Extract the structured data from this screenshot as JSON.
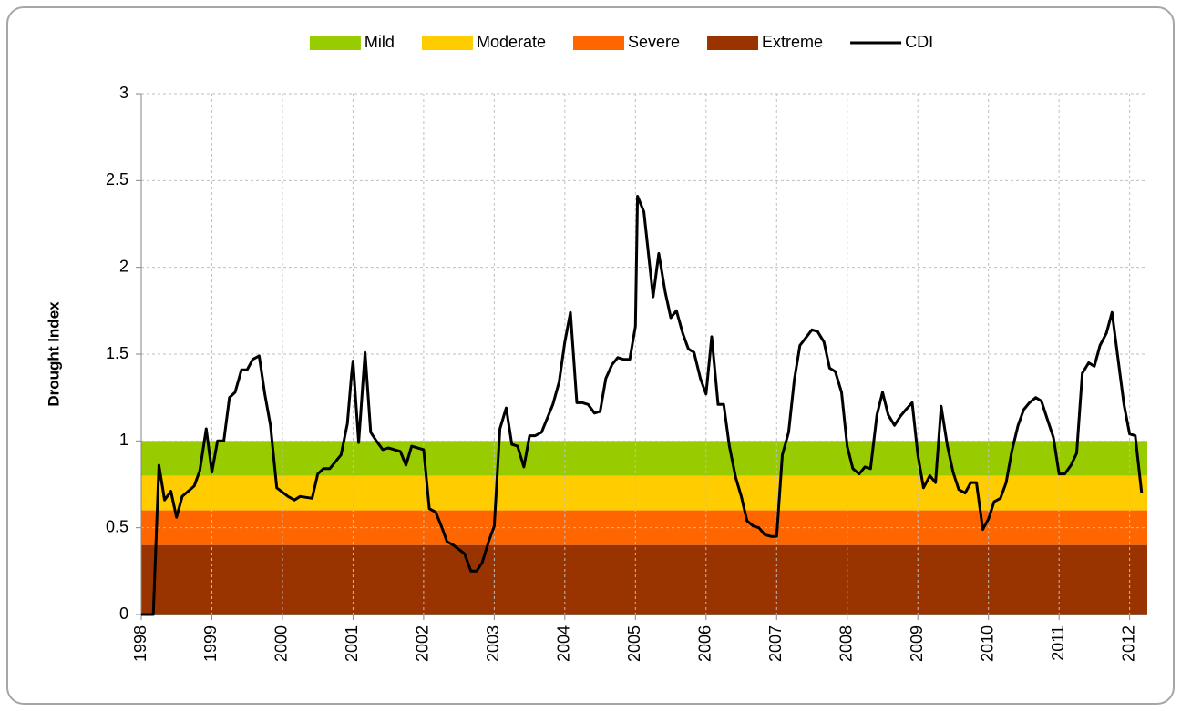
{
  "chart_data": {
    "type": "line",
    "y_label": "Drought Index",
    "x": [
      1998.0,
      1998.17,
      1998.25,
      1998.33,
      1998.42,
      1998.5,
      1998.58,
      1998.75,
      1998.83,
      1998.92,
      1999.0,
      1999.08,
      1999.17,
      1999.25,
      1999.33,
      1999.42,
      1999.5,
      1999.58,
      1999.67,
      1999.75,
      1999.83,
      1999.92,
      2000.08,
      2000.17,
      2000.25,
      2000.42,
      2000.5,
      2000.58,
      2000.67,
      2000.83,
      2000.92,
      2000.98,
      2001.0,
      2001.08,
      2001.17,
      2001.25,
      2001.33,
      2001.42,
      2001.5,
      2001.67,
      2001.75,
      2001.83,
      2002.0,
      2002.08,
      2002.17,
      2002.25,
      2002.33,
      2002.42,
      2002.58,
      2002.67,
      2002.75,
      2002.83,
      2002.92,
      2003.0,
      2003.08,
      2003.17,
      2003.25,
      2003.33,
      2003.42,
      2003.5,
      2003.58,
      2003.67,
      2003.83,
      2003.92,
      2004.0,
      2004.08,
      2004.17,
      2004.25,
      2004.33,
      2004.42,
      2004.5,
      2004.58,
      2004.67,
      2004.75,
      2004.83,
      2004.92,
      2005.0,
      2005.03,
      2005.12,
      2005.25,
      2005.33,
      2005.42,
      2005.5,
      2005.58,
      2005.67,
      2005.75,
      2005.83,
      2005.92,
      2006.0,
      2006.08,
      2006.17,
      2006.25,
      2006.33,
      2006.42,
      2006.5,
      2006.58,
      2006.67,
      2006.75,
      2006.83,
      2006.92,
      2007.0,
      2007.08,
      2007.17,
      2007.25,
      2007.33,
      2007.5,
      2007.58,
      2007.67,
      2007.75,
      2007.83,
      2007.92,
      2008.0,
      2008.08,
      2008.17,
      2008.25,
      2008.33,
      2008.42,
      2008.5,
      2008.58,
      2008.67,
      2008.75,
      2008.83,
      2008.92,
      2009.0,
      2009.08,
      2009.17,
      2009.25,
      2009.33,
      2009.42,
      2009.5,
      2009.58,
      2009.67,
      2009.75,
      2009.83,
      2009.92,
      2010.0,
      2010.08,
      2010.17,
      2010.25,
      2010.33,
      2010.42,
      2010.5,
      2010.58,
      2010.67,
      2010.75,
      2010.83,
      2010.92,
      2011.0,
      2011.08,
      2011.17,
      2011.25,
      2011.33,
      2011.42,
      2011.5,
      2011.58,
      2011.67,
      2011.75,
      2011.92,
      2012.0,
      2012.08,
      2012.17
    ],
    "series": [
      {
        "name": "CDI",
        "color": "#000000",
        "values": [
          0,
          0,
          0.86,
          0.66,
          0.71,
          0.56,
          0.68,
          0.74,
          0.83,
          1.07,
          0.82,
          1.0,
          1.0,
          1.25,
          1.28,
          1.41,
          1.41,
          1.47,
          1.49,
          1.27,
          1.09,
          0.73,
          0.68,
          0.66,
          0.68,
          0.67,
          0.81,
          0.84,
          0.84,
          0.92,
          1.1,
          1.39,
          1.46,
          0.99,
          1.51,
          1.05,
          1.0,
          0.95,
          0.96,
          0.94,
          0.86,
          0.97,
          0.95,
          0.61,
          0.59,
          0.51,
          0.42,
          0.4,
          0.35,
          0.25,
          0.25,
          0.3,
          0.42,
          0.51,
          1.07,
          1.19,
          0.98,
          0.97,
          0.85,
          1.03,
          1.03,
          1.05,
          1.21,
          1.34,
          1.57,
          1.74,
          1.22,
          1.22,
          1.21,
          1.16,
          1.17,
          1.36,
          1.44,
          1.48,
          1.47,
          1.47,
          1.66,
          2.41,
          2.32,
          1.83,
          2.08,
          1.86,
          1.71,
          1.75,
          1.62,
          1.53,
          1.51,
          1.36,
          1.27,
          1.6,
          1.21,
          1.21,
          0.97,
          0.79,
          0.68,
          0.54,
          0.51,
          0.5,
          0.46,
          0.45,
          0.45,
          0.92,
          1.05,
          1.35,
          1.55,
          1.64,
          1.63,
          1.57,
          1.42,
          1.4,
          1.28,
          0.97,
          0.84,
          0.81,
          0.85,
          0.84,
          1.15,
          1.28,
          1.15,
          1.09,
          1.14,
          1.18,
          1.22,
          0.92,
          0.73,
          0.8,
          0.76,
          1.2,
          0.97,
          0.82,
          0.72,
          0.7,
          0.76,
          0.76,
          0.49,
          0.55,
          0.65,
          0.67,
          0.76,
          0.94,
          1.09,
          1.18,
          1.22,
          1.25,
          1.23,
          1.13,
          1.02,
          0.81,
          0.81,
          0.86,
          0.93,
          1.39,
          1.45,
          1.43,
          1.55,
          1.62,
          1.74,
          1.21,
          1.04,
          1.03,
          0.7
        ]
      }
    ],
    "bands": [
      {
        "name": "Mild",
        "color": "#99cc00",
        "range": [
          0.8,
          1
        ]
      },
      {
        "name": "Moderate",
        "color": "#ffcc00",
        "range": [
          0.6,
          0.8
        ]
      },
      {
        "name": "Severe",
        "color": "#ff6600",
        "range": [
          0.4,
          0.6
        ]
      },
      {
        "name": "Extreme",
        "color": "#993300",
        "range": [
          0,
          0.4
        ]
      }
    ],
    "xlim": [
      1998,
      2012.25
    ],
    "xticks": [
      1998,
      1999,
      2000,
      2001,
      2002,
      2003,
      2004,
      2005,
      2006,
      2007,
      2008,
      2009,
      2010,
      2011,
      2012
    ],
    "ylim": [
      0,
      3
    ],
    "yticks": [
      0,
      0.5,
      1,
      1.5,
      2,
      2.5,
      3
    ],
    "grid": true,
    "legend": "top"
  }
}
